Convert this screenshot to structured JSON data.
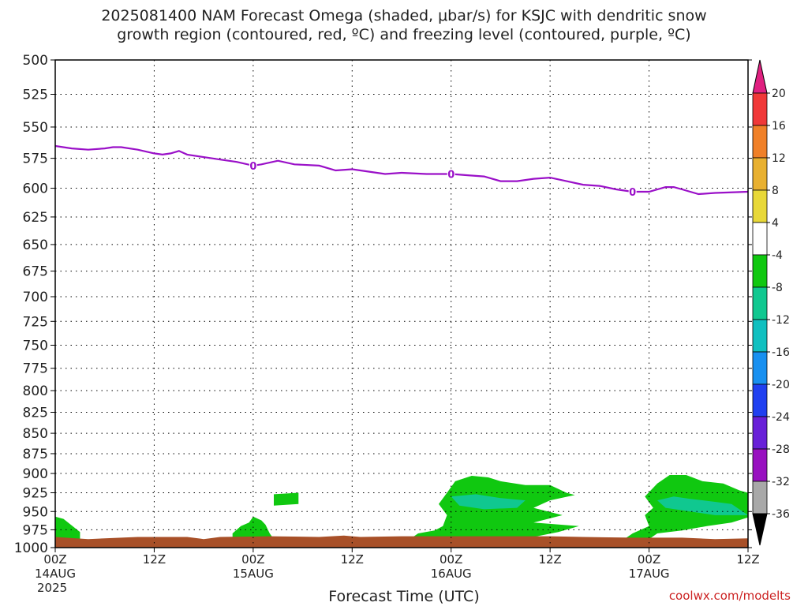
{
  "header": {
    "title_line1": "2025081400 NAM Forecast Omega (shaded, μbar/s) for KSJC with dendritic snow",
    "title_line2": "growth region (contoured, red, ºC) and freezing level (contoured, purple, ºC)"
  },
  "footer": {
    "credit": "coolwx.com/modelts"
  },
  "chart_data": {
    "type": "heatmap",
    "xlabel": "Forecast Time (UTC)",
    "y_axis": {
      "reversed": true,
      "range": [
        1000,
        500
      ],
      "ticks": [
        "500",
        "525",
        "550",
        "575",
        "600",
        "625",
        "650",
        "675",
        "700",
        "725",
        "750",
        "775",
        "800",
        "825",
        "850",
        "875",
        "900",
        "925",
        "950",
        "975",
        "1000"
      ],
      "tick_values": [
        500,
        525,
        550,
        575,
        600,
        625,
        650,
        675,
        700,
        725,
        750,
        775,
        800,
        825,
        850,
        875,
        900,
        925,
        950,
        975,
        1000
      ]
    },
    "x_axis": {
      "range_hours": [
        0,
        84
      ],
      "ticks": [
        {
          "hour": 0,
          "label": "00Z",
          "sub": "14AUG",
          "sub2": "2025"
        },
        {
          "hour": 12,
          "label": "12Z",
          "sub": "",
          "sub2": ""
        },
        {
          "hour": 24,
          "label": "00Z",
          "sub": "15AUG",
          "sub2": ""
        },
        {
          "hour": 36,
          "label": "12Z",
          "sub": "",
          "sub2": ""
        },
        {
          "hour": 48,
          "label": "00Z",
          "sub": "16AUG",
          "sub2": ""
        },
        {
          "hour": 60,
          "label": "12Z",
          "sub": "",
          "sub2": ""
        },
        {
          "hour": 72,
          "label": "00Z",
          "sub": "17AUG",
          "sub2": ""
        },
        {
          "hour": 84,
          "label": "12Z",
          "sub": "",
          "sub2": ""
        }
      ]
    },
    "grid": true,
    "colorbar": {
      "labels": [
        "20",
        "16",
        "12",
        "8",
        "4",
        "-4",
        "-8",
        "-12",
        "-16",
        "-20",
        "-24",
        "-28",
        "-32",
        "-36"
      ],
      "colors": [
        "#e02080",
        "#f03838",
        "#f08028",
        "#e8b030",
        "#e8d838",
        "#ffffff",
        "#10c810",
        "#10c890",
        "#10c0c0",
        "#1890f0",
        "#2040f0",
        "#6820d8",
        "#9810c0",
        "#a8a8a8",
        "#000000"
      ]
    },
    "freezing_level": {
      "color": "#9a10c8",
      "label": "0",
      "label_hours": [
        24,
        48,
        70
      ],
      "points": [
        [
          0,
          565
        ],
        [
          2,
          567
        ],
        [
          4,
          568
        ],
        [
          6,
          567
        ],
        [
          7,
          566
        ],
        [
          8,
          566
        ],
        [
          10,
          568
        ],
        [
          12,
          571
        ],
        [
          13,
          572
        ],
        [
          14,
          571
        ],
        [
          15,
          569
        ],
        [
          16,
          572
        ],
        [
          18,
          574
        ],
        [
          20,
          576
        ],
        [
          22,
          578
        ],
        [
          24,
          581
        ],
        [
          25,
          580
        ],
        [
          27,
          577
        ],
        [
          29,
          580
        ],
        [
          32,
          581
        ],
        [
          34,
          585
        ],
        [
          36,
          584
        ],
        [
          38,
          586
        ],
        [
          40,
          588
        ],
        [
          42,
          587
        ],
        [
          45,
          588
        ],
        [
          48,
          588
        ],
        [
          50,
          589
        ],
        [
          52,
          590
        ],
        [
          54,
          594
        ],
        [
          56,
          594
        ],
        [
          58,
          592
        ],
        [
          60,
          591
        ],
        [
          62,
          594
        ],
        [
          64,
          597
        ],
        [
          66,
          598
        ],
        [
          68,
          601
        ],
        [
          70,
          603
        ],
        [
          72,
          603
        ],
        [
          74,
          599
        ],
        [
          75,
          599
        ],
        [
          76,
          601
        ],
        [
          78,
          605
        ],
        [
          80,
          604
        ],
        [
          84,
          603
        ]
      ]
    },
    "omega_regions": [
      {
        "value_class": "-4 to -8",
        "color": "#10c810",
        "points": [
          [
            0,
            957
          ],
          [
            1,
            960
          ],
          [
            3,
            978
          ],
          [
            3,
            988
          ],
          [
            0,
            988
          ]
        ]
      },
      {
        "value_class": "-4 to -8",
        "color": "#10c810",
        "points": [
          [
            21.5,
            980
          ],
          [
            22.5,
            970
          ],
          [
            23.5,
            965
          ],
          [
            24,
            957
          ],
          [
            25,
            962
          ],
          [
            25.5,
            968
          ],
          [
            26,
            980
          ],
          [
            26.5,
            988
          ],
          [
            21.5,
            988
          ]
        ]
      },
      {
        "value_class": "-4 to -8",
        "color": "#10c810",
        "points": [
          [
            26.5,
            927
          ],
          [
            29.5,
            925
          ],
          [
            29.5,
            940
          ],
          [
            26.5,
            942
          ]
        ]
      },
      {
        "value_class": "-4 to -8",
        "color": "#10c810",
        "points": [
          [
            43,
            988
          ],
          [
            44,
            980
          ],
          [
            46,
            976
          ],
          [
            47,
            970
          ],
          [
            47.5,
            955
          ],
          [
            46.5,
            940
          ],
          [
            47.5,
            925
          ],
          [
            48.5,
            910
          ],
          [
            50.5,
            903
          ],
          [
            52.5,
            905
          ],
          [
            54,
            910
          ],
          [
            57,
            915
          ],
          [
            60,
            915
          ],
          [
            62,
            925
          ],
          [
            63,
            928
          ],
          [
            60,
            935
          ],
          [
            58,
            945
          ],
          [
            61.5,
            955
          ],
          [
            58,
            965
          ],
          [
            63.5,
            970
          ],
          [
            61,
            978
          ],
          [
            58,
            985
          ],
          [
            55,
            988
          ]
        ]
      },
      {
        "value_class": "-8 to -12",
        "color": "#10c890",
        "points": [
          [
            48,
            930
          ],
          [
            51,
            927
          ],
          [
            54,
            932
          ],
          [
            57,
            935
          ],
          [
            56,
            945
          ],
          [
            52,
            947
          ],
          [
            49,
            942
          ]
        ]
      },
      {
        "value_class": "-4 to -8",
        "color": "#10c810",
        "points": [
          [
            69,
            988
          ],
          [
            70,
            980
          ],
          [
            72,
            970
          ],
          [
            71.5,
            955
          ],
          [
            72.5,
            945
          ],
          [
            71.5,
            930
          ],
          [
            73,
            913
          ],
          [
            74.5,
            902
          ],
          [
            76.5,
            902
          ],
          [
            78.5,
            910
          ],
          [
            81,
            913
          ],
          [
            83,
            922
          ],
          [
            84,
            925
          ],
          [
            84,
            958
          ],
          [
            82,
            965
          ],
          [
            79,
            970
          ],
          [
            76,
            976
          ],
          [
            73,
            980
          ],
          [
            72,
            988
          ]
        ]
      },
      {
        "value_class": "-8 to -12",
        "color": "#10c890",
        "points": [
          [
            73,
            935
          ],
          [
            75,
            930
          ],
          [
            77,
            933
          ],
          [
            80,
            937
          ],
          [
            82,
            940
          ],
          [
            84,
            955
          ],
          [
            80,
            955
          ],
          [
            77,
            950
          ],
          [
            74,
            945
          ]
        ]
      }
    ],
    "surface": {
      "color": "#a85028",
      "points": [
        [
          0,
          985
        ],
        [
          4,
          988
        ],
        [
          10,
          985
        ],
        [
          16,
          985
        ],
        [
          18,
          988
        ],
        [
          20,
          985
        ],
        [
          26,
          984
        ],
        [
          32,
          985
        ],
        [
          35,
          983
        ],
        [
          37,
          985
        ],
        [
          42,
          984
        ],
        [
          48,
          984
        ],
        [
          54,
          984
        ],
        [
          60,
          984
        ],
        [
          64,
          985
        ],
        [
          70,
          986
        ],
        [
          76,
          986
        ],
        [
          80,
          988
        ],
        [
          84,
          987
        ]
      ]
    }
  }
}
